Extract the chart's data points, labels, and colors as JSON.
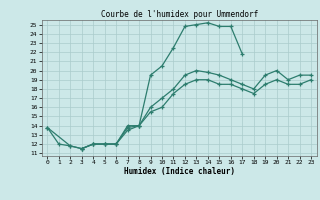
{
  "title": "Courbe de l'humidex pour Ummendorf",
  "xlabel": "Humidex (Indice chaleur)",
  "xlim": [
    -0.5,
    23.5
  ],
  "ylim": [
    10.7,
    25.5
  ],
  "xticks": [
    0,
    1,
    2,
    3,
    4,
    5,
    6,
    7,
    8,
    9,
    10,
    11,
    12,
    13,
    14,
    15,
    16,
    17,
    18,
    19,
    20,
    21,
    22,
    23
  ],
  "yticks": [
    11,
    12,
    13,
    14,
    15,
    16,
    17,
    18,
    19,
    20,
    21,
    22,
    23,
    24,
    25
  ],
  "line_color": "#2d7d6e",
  "bg_color": "#cce8e8",
  "grid_color": "#aacccc",
  "lines": [
    {
      "x": [
        0,
        1,
        2,
        3,
        4,
        5,
        6,
        7,
        8,
        9,
        10,
        11,
        12,
        13,
        14,
        15,
        16,
        17
      ],
      "y": [
        13.8,
        12.0,
        11.8,
        11.5,
        12.0,
        12.0,
        12.0,
        14.0,
        14.0,
        19.5,
        20.5,
        22.5,
        24.8,
        25.0,
        25.2,
        24.8,
        24.8,
        21.8
      ]
    },
    {
      "x": [
        0,
        2,
        3,
        4,
        5,
        6,
        7,
        8,
        9,
        10,
        11,
        12,
        13,
        14,
        15,
        16,
        17,
        18,
        19,
        20,
        21,
        22,
        23
      ],
      "y": [
        13.8,
        11.8,
        11.5,
        12.0,
        12.0,
        12.0,
        13.8,
        14.0,
        16.0,
        17.0,
        18.0,
        19.5,
        20.0,
        19.8,
        19.5,
        19.0,
        18.5,
        18.0,
        19.5,
        20.0,
        19.0,
        19.5,
        19.5
      ]
    },
    {
      "x": [
        3,
        4,
        5,
        6,
        7,
        8,
        9,
        10,
        11,
        12,
        13,
        14,
        15,
        16,
        17,
        18,
        19,
        20,
        21,
        22,
        23
      ],
      "y": [
        11.5,
        12.0,
        12.0,
        12.0,
        13.5,
        14.0,
        15.5,
        16.0,
        17.5,
        18.5,
        19.0,
        19.0,
        18.5,
        18.5,
        18.0,
        17.5,
        18.5,
        19.0,
        18.5,
        18.5,
        19.0
      ]
    }
  ]
}
